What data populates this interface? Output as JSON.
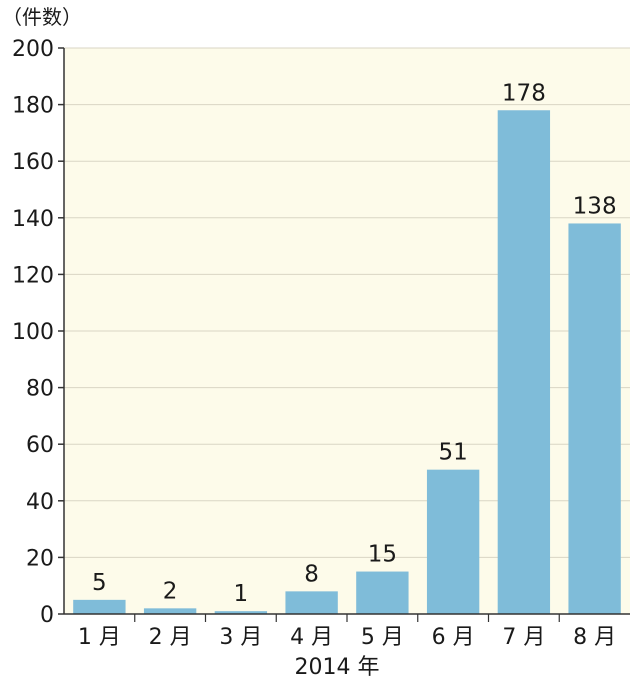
{
  "chart_data": {
    "type": "bar",
    "categories": [
      "1 月",
      "2 月",
      "3 月",
      "4 月",
      "5 月",
      "6 月",
      "7 月",
      "8 月"
    ],
    "values": [
      5,
      2,
      1,
      8,
      15,
      51,
      178,
      138
    ],
    "value_labels": [
      "5",
      "2",
      "1",
      "8",
      "15",
      "51",
      "178",
      "138"
    ],
    "title": "",
    "ylabel": "（件数）",
    "xlabel": "2014 年",
    "ylim": [
      0,
      200
    ],
    "yticks": [
      0,
      20,
      40,
      60,
      80,
      100,
      120,
      140,
      160,
      180,
      200
    ],
    "grid": true,
    "legend": "none",
    "colors": {
      "bar": "#7fbcd9",
      "plot_background": "#fdfbea",
      "grid": "#d9d6c4",
      "axis": "#333333"
    }
  }
}
